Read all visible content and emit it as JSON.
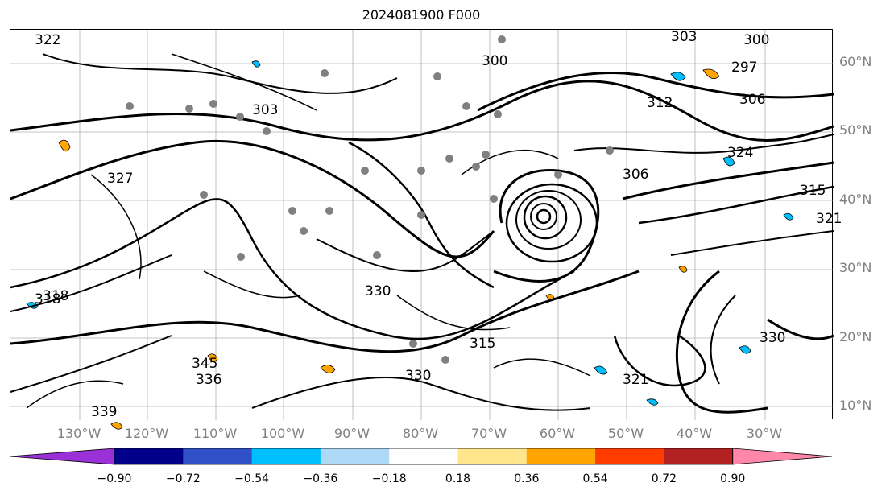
{
  "title": "2024081900 F000",
  "lat_labels": [
    "60°N",
    "50°N",
    "40°N",
    "30°N",
    "20°N",
    "10°N"
  ],
  "lon_labels": [
    "130°W",
    "120°W",
    "110°W",
    "100°W",
    "90°W",
    "80°W",
    "70°W",
    "60°W",
    "50°W",
    "40°W",
    "30°W"
  ],
  "contour_labels": [
    "322",
    "300",
    "303",
    "300",
    "297",
    "303",
    "306",
    "312",
    "324",
    "327",
    "306",
    "315",
    "318",
    "321",
    "330",
    "318",
    "315",
    "330",
    "336",
    "345",
    "339",
    "330",
    "321"
  ],
  "colorbar": {
    "ticks": [
      "−0.90",
      "−0.72",
      "−0.54",
      "−0.36",
      "−0.18",
      "0.18",
      "0.36",
      "0.54",
      "0.72",
      "0.90"
    ],
    "colors": [
      "#9b30d8",
      "#00008b",
      "#3050c8",
      "#00bfff",
      "#add8f6",
      "#ffffff",
      "#ffe68c",
      "#ffa500",
      "#ff3c00",
      "#b22222",
      "#ff88aa"
    ]
  }
}
